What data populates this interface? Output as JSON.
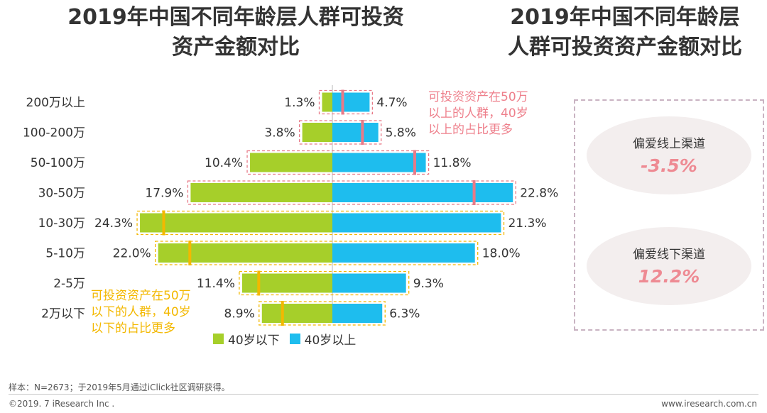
{
  "title_left": [
    "2019年中国不同年龄层人群可投资",
    "资产金额对比"
  ],
  "title_right": [
    "2019年中国不同年龄层",
    "人群可投资资产金额对比"
  ],
  "chart_data": {
    "type": "bar",
    "orientation": "horizontal-diverging",
    "categories": [
      "200万以上",
      "100-200万",
      "50-100万",
      "30-50万",
      "10-30万",
      "5-10万",
      "2-5万",
      "2万以下"
    ],
    "series": [
      {
        "name": "40岁以下",
        "color": "#a6cf2a",
        "values": [
          1.3,
          3.8,
          10.4,
          17.9,
          24.3,
          22.0,
          11.4,
          8.9
        ],
        "labels": [
          "1.3%",
          "3.8%",
          "10.4%",
          "17.9%",
          "24.3%",
          "22.0%",
          "11.4%",
          "8.9%"
        ]
      },
      {
        "name": "40岁以上",
        "color": "#1ebdee",
        "values": [
          4.7,
          5.8,
          11.8,
          22.8,
          21.3,
          18.0,
          9.3,
          6.3
        ],
        "labels": [
          "4.7%",
          "5.8%",
          "11.8%",
          "22.8%",
          "21.3%",
          "18.0%",
          "9.3%",
          "6.3%"
        ]
      }
    ],
    "xlim": [
      -25,
      25
    ],
    "highlight_top": {
      "count": 4,
      "color": "#e87a88"
    },
    "highlight_bottom": {
      "count": 4,
      "color": "#f3b800"
    }
  },
  "notes": {
    "top": [
      "可投资资产在50万",
      "以上的人群，40岁",
      "以上的占比更多"
    ],
    "bottom": [
      "可投资资产在50万",
      "以下的人群，40岁",
      "以下的占比更多"
    ]
  },
  "channels": {
    "online": {
      "label": "偏爱线上渠道",
      "value": "-3.5%"
    },
    "offline": {
      "label": "偏爱线下渠道",
      "value": "12.2%"
    }
  },
  "legend": {
    "under40": "40岁以下",
    "over40": "40岁以上"
  },
  "footer": {
    "source": "样本：N=2673；于2019年5月通过iClick社区调研获得。",
    "copyright": "©2019. 7 iResearch Inc .",
    "url": "www.iresearch.com.cn"
  }
}
